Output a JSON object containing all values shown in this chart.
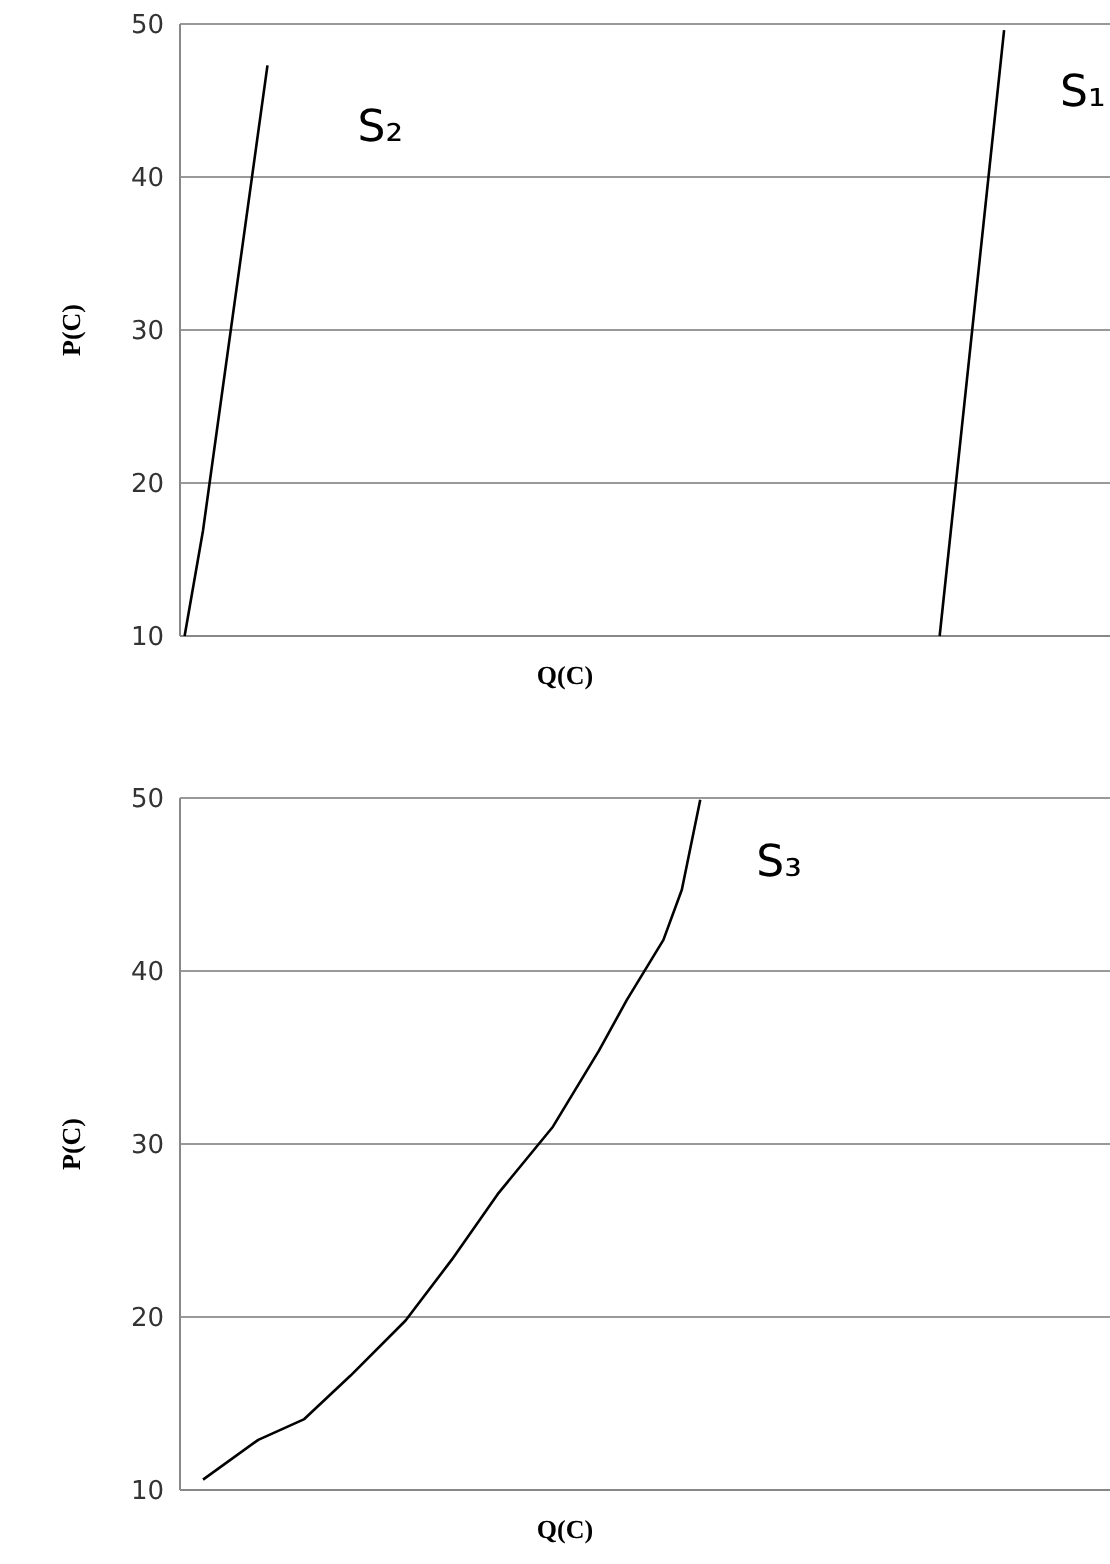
{
  "chart_data": [
    {
      "type": "line",
      "xlabel": "Q(C)",
      "ylabel": "P(C)",
      "ylim": [
        10,
        50
      ],
      "yticks": [
        10,
        20,
        30,
        40,
        50
      ],
      "grid": "y",
      "tick_labels": "y",
      "legend": false,
      "categories": [
        null,
        null,
        null,
        null,
        null,
        null,
        null,
        null,
        null,
        null,
        null,
        null,
        null,
        null,
        null,
        null,
        null,
        null,
        null,
        null,
        null,
        null,
        null,
        null,
        null,
        null,
        null,
        null,
        null,
        null,
        null,
        null,
        null,
        null,
        null,
        null,
        null,
        null,
        null,
        null,
        null,
        null,
        null,
        null,
        null,
        null,
        null,
        null,
        null,
        null,
        null,
        null,
        null,
        null,
        null,
        null,
        null,
        null,
        null,
        null,
        null,
        null,
        null,
        null,
        null,
        null,
        null,
        null,
        null,
        null,
        null,
        null,
        null,
        null,
        null,
        null,
        null,
        null,
        null,
        null,
        null,
        null,
        null,
        null,
        null,
        null,
        null,
        null,
        null,
        null,
        null,
        null,
        null,
        null,
        null,
        null,
        null,
        null,
        null,
        null,
        null
      ],
      "series": [
        {
          "name": "S₂",
          "color": "#000000",
          "values": [
            10,
            null,
            16.9,
            null,
            null,
            null,
            null,
            null,
            null,
            47.3,
            null,
            null,
            null,
            null,
            null,
            null,
            null,
            null,
            null,
            null,
            null,
            null,
            null,
            null,
            null,
            null,
            null,
            null,
            null,
            null,
            null,
            null,
            null,
            null,
            null,
            null,
            null,
            null,
            null,
            null,
            null,
            null,
            null,
            null,
            null,
            null,
            null,
            null,
            null,
            null,
            null,
            null,
            null,
            null,
            null,
            null,
            null,
            null,
            null,
            null,
            null,
            null,
            null,
            null,
            null,
            null,
            null,
            null,
            null,
            null,
            null,
            null,
            null,
            null,
            null,
            null,
            null,
            null,
            null,
            null,
            null,
            null,
            null,
            null,
            null,
            null,
            null,
            null,
            null,
            null,
            null,
            null,
            null,
            null,
            null,
            null,
            null,
            null,
            null,
            null,
            null
          ]
        },
        {
          "name": "S₁",
          "color": "#000000",
          "values": [
            null,
            null,
            null,
            null,
            null,
            null,
            null,
            null,
            null,
            null,
            null,
            null,
            null,
            null,
            null,
            null,
            null,
            null,
            null,
            null,
            null,
            null,
            null,
            null,
            null,
            null,
            null,
            null,
            null,
            null,
            null,
            null,
            null,
            null,
            null,
            null,
            null,
            null,
            null,
            null,
            null,
            null,
            null,
            null,
            null,
            null,
            null,
            null,
            null,
            null,
            null,
            null,
            null,
            null,
            null,
            null,
            null,
            null,
            null,
            null,
            null,
            null,
            null,
            null,
            null,
            null,
            null,
            null,
            null,
            null,
            null,
            null,
            null,
            null,
            null,
            null,
            null,
            null,
            null,
            null,
            null,
            null,
            10,
            null,
            null,
            null,
            null,
            null,
            null,
            49.6,
            null,
            null,
            null,
            null,
            null,
            null,
            null,
            null,
            null,
            null,
            null
          ]
        }
      ]
    },
    {
      "type": "line",
      "xlabel": "Q(C)",
      "ylabel": "P(C)",
      "ylim": [
        10,
        50
      ],
      "yticks": [
        10,
        20,
        30,
        40,
        50
      ],
      "grid": "y",
      "tick_labels": "y",
      "legend": false,
      "categories": [
        null,
        null,
        null,
        null,
        null,
        null,
        null,
        null,
        null,
        null,
        null,
        null,
        null,
        null,
        null,
        null,
        null,
        null,
        null,
        null,
        null,
        null,
        null,
        null,
        null,
        null,
        null,
        null,
        null,
        null,
        null,
        null,
        null,
        null,
        null,
        null,
        null,
        null,
        null,
        null,
        null,
        null,
        null,
        null,
        null,
        null,
        null,
        null,
        null,
        null,
        null,
        null,
        null,
        null,
        null,
        null,
        null,
        null,
        null,
        null,
        null,
        null,
        null,
        null,
        null,
        null,
        null,
        null,
        null,
        null,
        null,
        null,
        null,
        null,
        null,
        null,
        null,
        null,
        null,
        null,
        null,
        null,
        null,
        null,
        null,
        null,
        null,
        null,
        null,
        null,
        null,
        null,
        null,
        null,
        null,
        null,
        null,
        null,
        null,
        null,
        null
      ],
      "series": [
        {
          "name": "S₃",
          "color": "#000000",
          "values": [
            null,
            null,
            10.6,
            null,
            null,
            null,
            null,
            null,
            12.9,
            null,
            null,
            null,
            null,
            14.1,
            null,
            null,
            null,
            null,
            16.6,
            null,
            null,
            null,
            null,
            null,
            19.8,
            null,
            null,
            null,
            null,
            23.3,
            null,
            null,
            null,
            null,
            27.1,
            null,
            null,
            null,
            null,
            null,
            31,
            null,
            null,
            null,
            null,
            35.4,
            null,
            null,
            38.3,
            null,
            null,
            null,
            41.8,
            null,
            44.7,
            null,
            49.9,
            null,
            null,
            null,
            null,
            null,
            null,
            null,
            null,
            null,
            null,
            null,
            null,
            null,
            null,
            null,
            null,
            null,
            null,
            null,
            null,
            null,
            null,
            null,
            null,
            null,
            null,
            null,
            null,
            null,
            null,
            null,
            null,
            null,
            null,
            null,
            null,
            null,
            null,
            null,
            null,
            null,
            null,
            null,
            null
          ]
        }
      ]
    }
  ]
}
